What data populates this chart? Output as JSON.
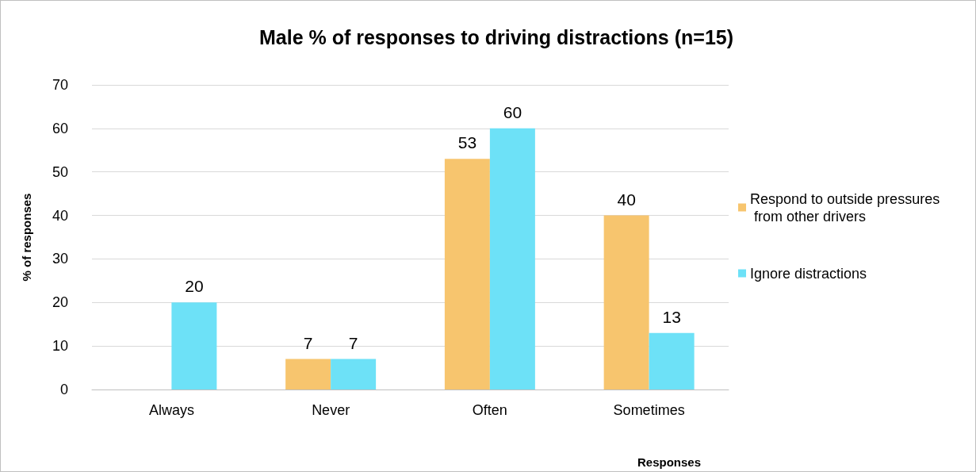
{
  "chart_data": {
    "type": "bar",
    "title": "Male % of responses to driving distractions (n=15)",
    "xlabel": "Responses",
    "ylabel": "% of responses",
    "categories": [
      "Always",
      "Never",
      "Often",
      "Sometimes"
    ],
    "series": [
      {
        "name": "Respond to outside pressures from other drivers",
        "color": "#f7c56e",
        "values": [
          0,
          7,
          53,
          40
        ],
        "value_labels": [
          null,
          "7",
          "53",
          "40"
        ]
      },
      {
        "name": "Ignore distractions",
        "color": "#6de1f7",
        "values": [
          20,
          7,
          60,
          13
        ],
        "value_labels": [
          "20",
          "7",
          "60",
          "13"
        ]
      }
    ],
    "ylim": [
      0,
      70
    ],
    "yticks": [
      0,
      10,
      20,
      30,
      40,
      50,
      60,
      70
    ],
    "grid": "y",
    "legend": "right"
  }
}
